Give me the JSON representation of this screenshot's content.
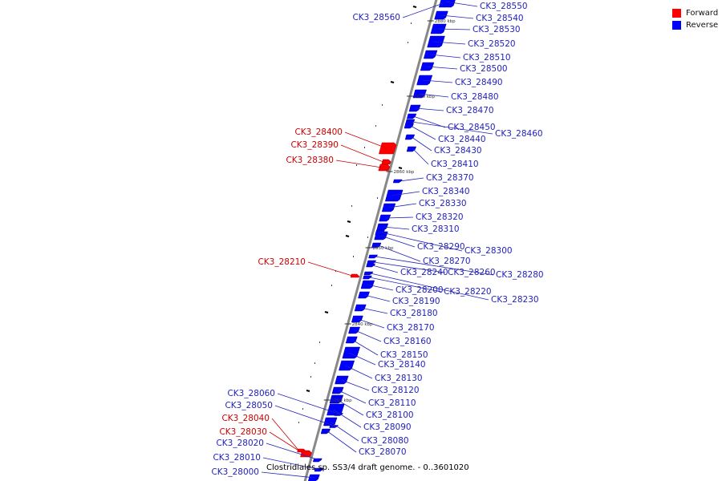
{
  "legend": {
    "forward_label": "Forward",
    "reverse_label": "Reverse",
    "forward_color": "#ff0000",
    "reverse_color": "#0000ff"
  },
  "caption": "Clostridiales sp. SS3/4 draft genome. - 0..3601020",
  "colors": {
    "backbone": "#888888",
    "forward": "#ff0000",
    "reverse": "#0000ff",
    "forward_label": "#cc0000",
    "reverse_label": "#2222bb",
    "minor_feature": "#000000"
  },
  "scale_marks": [
    "2880 kbp",
    "2870 kbp",
    "2860 kbp",
    "2850 kbp",
    "2840 kbp",
    "2830 kbp"
  ],
  "genes": [
    {
      "id": "CK3_28560",
      "strand": "reverse"
    },
    {
      "id": "CK3_28550",
      "strand": "reverse"
    },
    {
      "id": "CK3_28540",
      "strand": "reverse"
    },
    {
      "id": "CK3_28530",
      "strand": "reverse"
    },
    {
      "id": "CK3_28520",
      "strand": "reverse"
    },
    {
      "id": "CK3_28510",
      "strand": "reverse"
    },
    {
      "id": "CK3_28500",
      "strand": "reverse"
    },
    {
      "id": "CK3_28490",
      "strand": "reverse"
    },
    {
      "id": "CK3_28480",
      "strand": "reverse"
    },
    {
      "id": "CK3_28470",
      "strand": "reverse"
    },
    {
      "id": "CK3_28460",
      "strand": "reverse"
    },
    {
      "id": "CK3_28450",
      "strand": "reverse"
    },
    {
      "id": "CK3_28440",
      "strand": "reverse"
    },
    {
      "id": "CK3_28430",
      "strand": "reverse"
    },
    {
      "id": "CK3_28410",
      "strand": "reverse"
    },
    {
      "id": "CK3_28400",
      "strand": "forward"
    },
    {
      "id": "CK3_28390",
      "strand": "forward"
    },
    {
      "id": "CK3_28380",
      "strand": "forward"
    },
    {
      "id": "CK3_28370",
      "strand": "reverse"
    },
    {
      "id": "CK3_28340",
      "strand": "reverse"
    },
    {
      "id": "CK3_28330",
      "strand": "reverse"
    },
    {
      "id": "CK3_28320",
      "strand": "reverse"
    },
    {
      "id": "CK3_28310",
      "strand": "reverse"
    },
    {
      "id": "CK3_28290",
      "strand": "reverse"
    },
    {
      "id": "CK3_28300",
      "strand": "reverse"
    },
    {
      "id": "CK3_28270",
      "strand": "reverse"
    },
    {
      "id": "CK3_28210",
      "strand": "forward"
    },
    {
      "id": "CK3_28240",
      "strand": "reverse"
    },
    {
      "id": "CK3_28260",
      "strand": "reverse"
    },
    {
      "id": "CK3_28280",
      "strand": "reverse"
    },
    {
      "id": "CK3_28200",
      "strand": "reverse"
    },
    {
      "id": "CK3_28220",
      "strand": "reverse"
    },
    {
      "id": "CK3_28230",
      "strand": "reverse"
    },
    {
      "id": "CK3_28190",
      "strand": "reverse"
    },
    {
      "id": "CK3_28180",
      "strand": "reverse"
    },
    {
      "id": "CK3_28170",
      "strand": "reverse"
    },
    {
      "id": "CK3_28160",
      "strand": "reverse"
    },
    {
      "id": "CK3_28150",
      "strand": "reverse"
    },
    {
      "id": "CK3_28140",
      "strand": "reverse"
    },
    {
      "id": "CK3_28130",
      "strand": "reverse"
    },
    {
      "id": "CK3_28120",
      "strand": "reverse"
    },
    {
      "id": "CK3_28110",
      "strand": "reverse"
    },
    {
      "id": "CK3_28100",
      "strand": "reverse"
    },
    {
      "id": "CK3_28090",
      "strand": "reverse"
    },
    {
      "id": "CK3_28080",
      "strand": "reverse"
    },
    {
      "id": "CK3_28070",
      "strand": "reverse"
    },
    {
      "id": "CK3_28060",
      "strand": "reverse"
    },
    {
      "id": "CK3_28050",
      "strand": "reverse"
    },
    {
      "id": "CK3_28040",
      "strand": "forward"
    },
    {
      "id": "CK3_28030",
      "strand": "forward"
    },
    {
      "id": "CK3_28020",
      "strand": "reverse"
    },
    {
      "id": "CK3_28010",
      "strand": "reverse"
    },
    {
      "id": "CK3_28000",
      "strand": "reverse"
    }
  ]
}
